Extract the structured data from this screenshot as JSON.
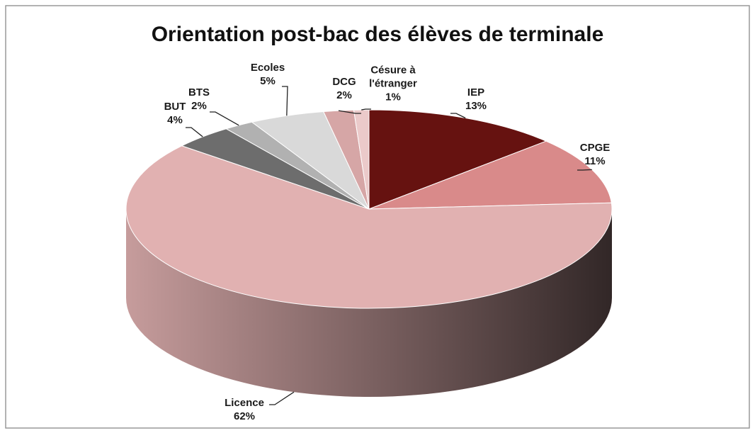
{
  "chart_data": {
    "type": "pie",
    "title": "Orientation post-bac des élèves de terminale",
    "categories": [
      "IEP",
      "CPGE",
      "Licence",
      "BUT",
      "BTS",
      "Ecoles",
      "DCG",
      "Césure à l'étranger"
    ],
    "values": [
      13,
      11,
      62,
      4,
      2,
      5,
      2,
      1
    ],
    "value_labels": [
      "13%",
      "11%",
      "62%",
      "4%",
      "2%",
      "5%",
      "2%",
      "1%"
    ],
    "colors": [
      "#661210",
      "#d98a8a",
      "#e1b1b1",
      "#6d6d6d",
      "#b1b1b1",
      "#d9d9d9",
      "#d6a6a6",
      "#ebcaca"
    ]
  }
}
